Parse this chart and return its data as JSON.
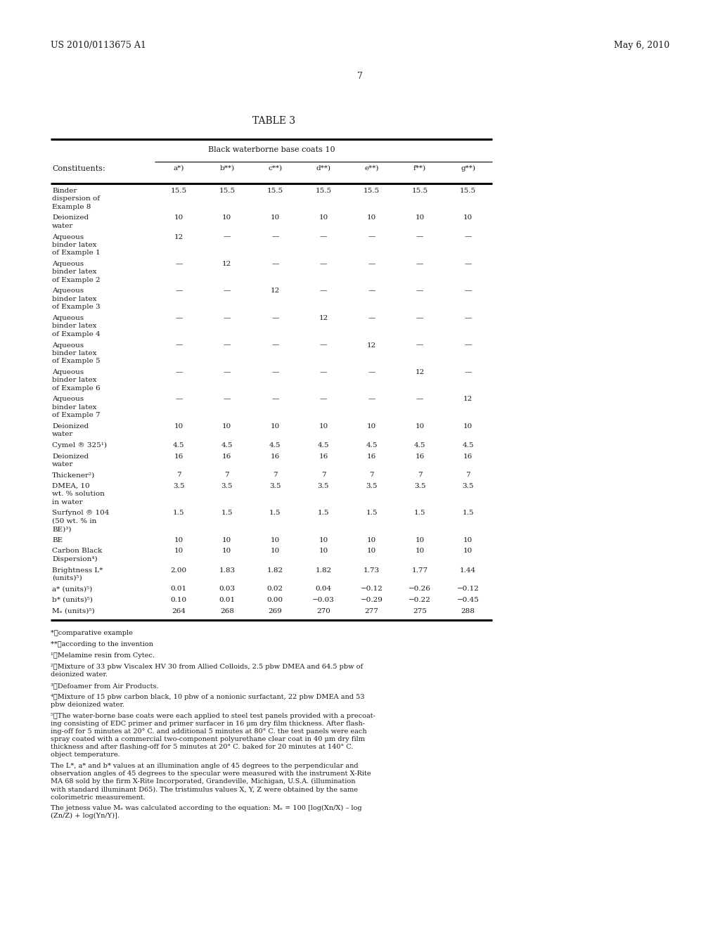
{
  "patent_number": "US 2010/0113675 A1",
  "patent_date": "May 6, 2010",
  "page_number": "7",
  "table_title": "TABLE 3",
  "table_subtitle": "Black waterborne base coats 10",
  "columns": [
    "Constituents:",
    "a*)",
    "b**)",
    "c**)",
    "d**)",
    "e**)",
    "f**)",
    "g**)"
  ],
  "rows": [
    {
      "label": "Binder\ndispersion of\nExample 8",
      "values": [
        "15.5",
        "15.5",
        "15.5",
        "15.5",
        "15.5",
        "15.5",
        "15.5"
      ],
      "nlines": 3
    },
    {
      "label": "Deionized\nwater",
      "values": [
        "10",
        "10",
        "10",
        "10",
        "10",
        "10",
        "10"
      ],
      "nlines": 2
    },
    {
      "label": "Aqueous\nbinder latex\nof Example 1",
      "values": [
        "12",
        "—",
        "—",
        "—",
        "—",
        "—",
        "—"
      ],
      "nlines": 3
    },
    {
      "label": "Aqueous\nbinder latex\nof Example 2",
      "values": [
        "—",
        "12",
        "—",
        "—",
        "—",
        "—",
        "—"
      ],
      "nlines": 3
    },
    {
      "label": "Aqueous\nbinder latex\nof Example 3",
      "values": [
        "—",
        "—",
        "12",
        "—",
        "—",
        "—",
        "—"
      ],
      "nlines": 3
    },
    {
      "label": "Aqueous\nbinder latex\nof Example 4",
      "values": [
        "—",
        "—",
        "—",
        "12",
        "—",
        "—",
        "—"
      ],
      "nlines": 3
    },
    {
      "label": "Aqueous\nbinder latex\nof Example 5",
      "values": [
        "—",
        "—",
        "—",
        "—",
        "12",
        "—",
        "—"
      ],
      "nlines": 3
    },
    {
      "label": "Aqueous\nbinder latex\nof Example 6",
      "values": [
        "—",
        "—",
        "—",
        "—",
        "—",
        "12",
        "—"
      ],
      "nlines": 3
    },
    {
      "label": "Aqueous\nbinder latex\nof Example 7",
      "values": [
        "—",
        "—",
        "—",
        "—",
        "—",
        "—",
        "12"
      ],
      "nlines": 3
    },
    {
      "label": "Deionized\nwater",
      "values": [
        "10",
        "10",
        "10",
        "10",
        "10",
        "10",
        "10"
      ],
      "nlines": 2
    },
    {
      "label": "Cymel ® 325¹)",
      "values": [
        "4.5",
        "4.5",
        "4.5",
        "4.5",
        "4.5",
        "4.5",
        "4.5"
      ],
      "nlines": 1
    },
    {
      "label": "Deionized\nwater",
      "values": [
        "16",
        "16",
        "16",
        "16",
        "16",
        "16",
        "16"
      ],
      "nlines": 2
    },
    {
      "label": "Thickener²)",
      "values": [
        "7",
        "7",
        "7",
        "7",
        "7",
        "7",
        "7"
      ],
      "nlines": 1
    },
    {
      "label": "DMEA, 10\nwt. % solution\nin water",
      "values": [
        "3.5",
        "3.5",
        "3.5",
        "3.5",
        "3.5",
        "3.5",
        "3.5"
      ],
      "nlines": 3
    },
    {
      "label": "Surfynol ® 104\n(50 wt. % in\nBE)³)",
      "values": [
        "1.5",
        "1.5",
        "1.5",
        "1.5",
        "1.5",
        "1.5",
        "1.5"
      ],
      "nlines": 3
    },
    {
      "label": "BE",
      "values": [
        "10",
        "10",
        "10",
        "10",
        "10",
        "10",
        "10"
      ],
      "nlines": 1
    },
    {
      "label": "Carbon Black\nDispersion⁴)",
      "values": [
        "10",
        "10",
        "10",
        "10",
        "10",
        "10",
        "10"
      ],
      "nlines": 2
    },
    {
      "label": "Brightness L*\n(units)⁵)",
      "values": [
        "2.00",
        "1.83",
        "1.82",
        "1.82",
        "1.73",
        "1.77",
        "1.44"
      ],
      "nlines": 2
    },
    {
      "label": "a* (units)⁵)",
      "values": [
        "0.01",
        "0.03",
        "0.02",
        "0.04",
        "−0.12",
        "−0.26",
        "−0.12"
      ],
      "nlines": 1
    },
    {
      "label": "b* (units)⁵)",
      "values": [
        "0.10",
        "0.01",
        "0.00",
        "−0.03",
        "−0.29",
        "−0.22",
        "−0.45"
      ],
      "nlines": 1
    },
    {
      "label": "Mₑ (units)⁵)",
      "values": [
        "264",
        "268",
        "269",
        "270",
        "277",
        "275",
        "288"
      ],
      "nlines": 1
    }
  ],
  "footnotes": [
    "*⧏comparative example",
    "**⧏according to the invention",
    "¹⧏Melamine resin from Cytec.",
    "²⧏Mixture of 33 pbw Viscalex HV 30 from Allied Colloids, 2.5 pbw DMEA and 64.5 pbw of\ndeionized water.",
    "³⧏Defoamer from Air Products.",
    "⁴⧏Mixture of 15 pbw carbon black, 10 pbw of a nonionic surfactant, 22 pbw DMEA and 53\npbw deionized water.",
    "⁵⧏The water-borne base coats were each applied to steel test panels provided with a precoat-\ning consisting of EDC primer and primer surfacer in 16 μm dry film thickness. After flash-\ning-off for 5 minutes at 20° C. and additional 5 minutes at 80° C. the test panels were each\nspray coated with a commercial two-component polyurethane clear coat in 40 μm dry film\nthickness and after flashing-off for 5 minutes at 20° C. baked for 20 minutes at 140° C.\nobject temperature.",
    "The L*, a* and b* values at an illumination angle of 45 degrees to the perpendicular and\nobservation angles of 45 degrees to the specular were measured with the instrument X-Rite\nMA 68 sold by the firm X-Rite Incorporated, Grandeville, Michigan, U.S.A. (illumination\nwith standard illuminant D65). The tristimulus values X, Y, Z were obtained by the same\ncolorimetric measurement.",
    "The jetness value Mₑ was calculated according to the equation: Mₑ = 100 [log(Xn/X) – log\n(Zn/Z) + log(Yn/Y)]."
  ],
  "background_color": "#ffffff",
  "text_color": "#1a1a1a"
}
